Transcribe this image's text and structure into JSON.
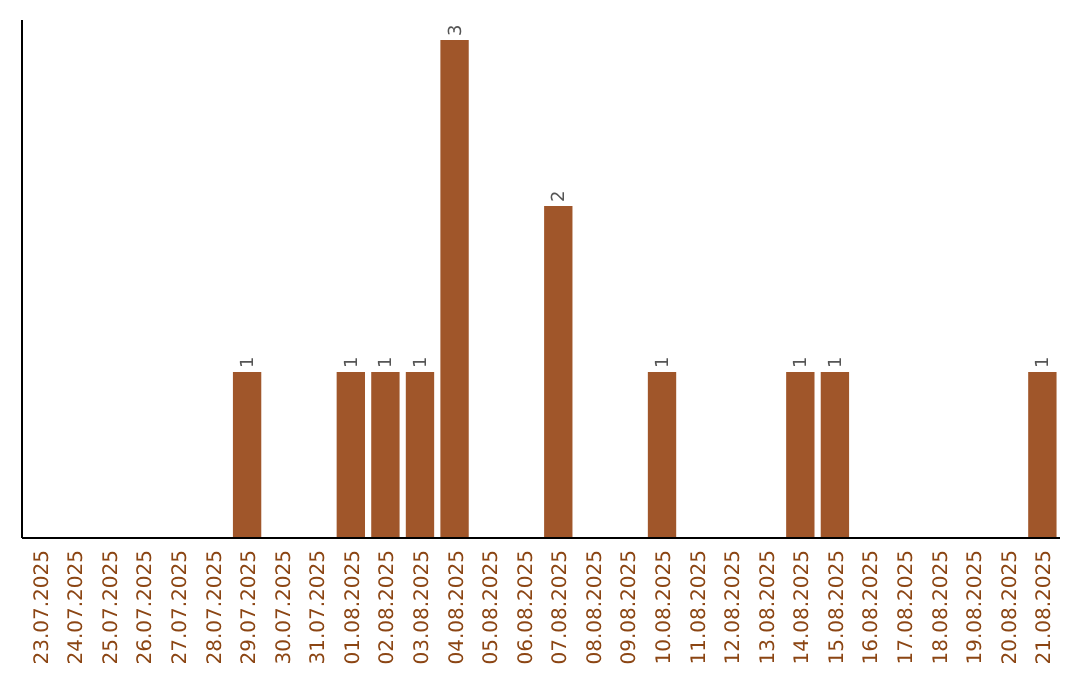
{
  "chart_data": {
    "type": "bar",
    "categories": [
      "23.07.2025",
      "24.07.2025",
      "25.07.2025",
      "26.07.2025",
      "27.07.2025",
      "28.07.2025",
      "29.07.2025",
      "30.07.2025",
      "31.07.2025",
      "01.08.2025",
      "02.08.2025",
      "03.08.2025",
      "04.08.2025",
      "05.08.2025",
      "06.08.2025",
      "07.08.2025",
      "08.08.2025",
      "09.08.2025",
      "10.08.2025",
      "11.08.2025",
      "12.08.2025",
      "13.08.2025",
      "14.08.2025",
      "15.08.2025",
      "16.08.2025",
      "17.08.2025",
      "18.08.2025",
      "19.08.2025",
      "20.08.2025",
      "21.08.2025"
    ],
    "values": [
      0,
      0,
      0,
      0,
      0,
      0,
      1,
      0,
      0,
      1,
      1,
      1,
      3,
      0,
      0,
      2,
      0,
      0,
      1,
      0,
      0,
      0,
      1,
      1,
      0,
      0,
      0,
      0,
      0,
      1
    ],
    "value_labels": [
      null,
      null,
      null,
      null,
      null,
      null,
      "1",
      null,
      null,
      "1",
      "1",
      "1",
      "3",
      null,
      null,
      "2",
      null,
      null,
      "1",
      null,
      null,
      null,
      "1",
      "1",
      null,
      null,
      null,
      null,
      null,
      "1"
    ],
    "color": "#a0562a",
    "tick_labels": "x"
  }
}
